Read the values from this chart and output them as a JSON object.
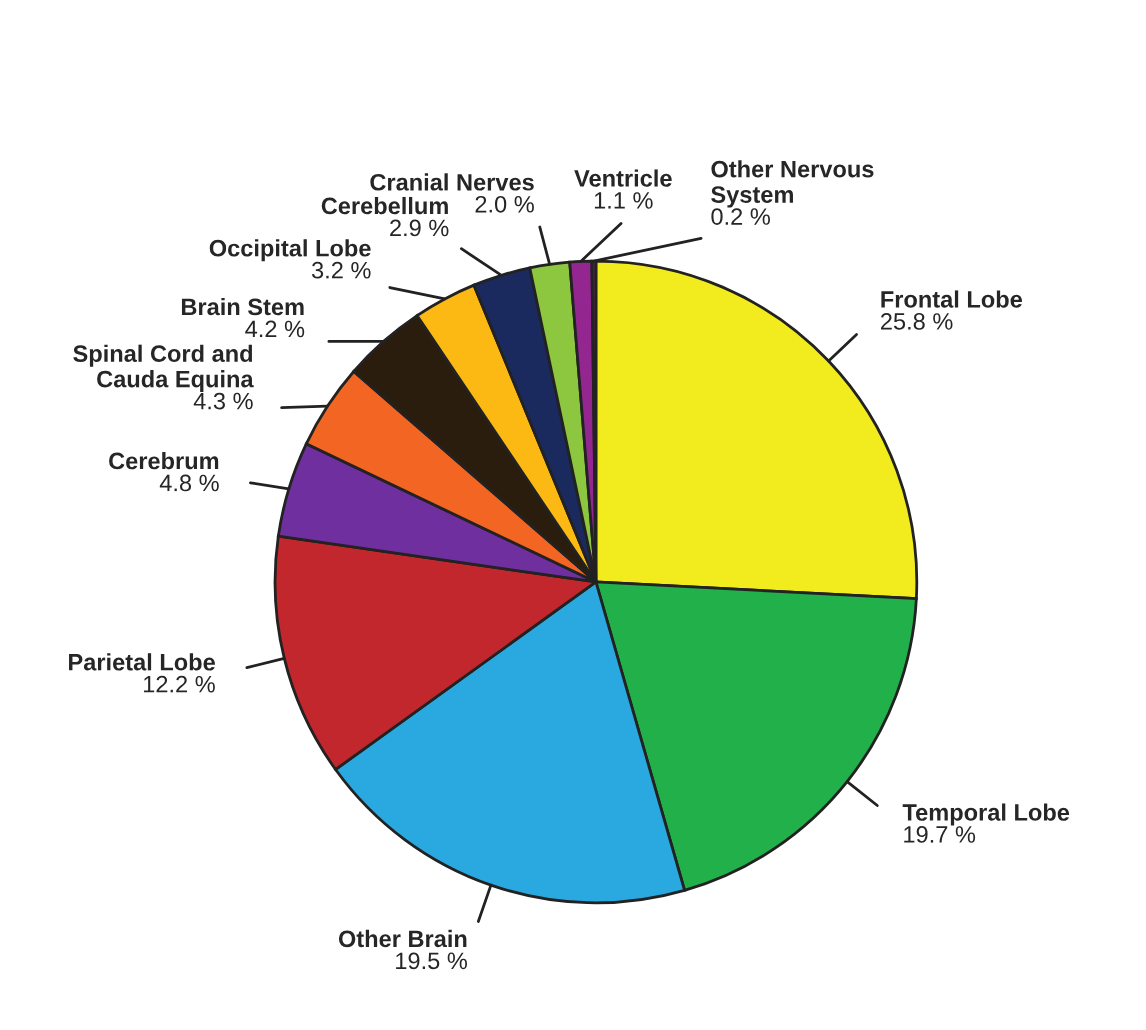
{
  "chart_data": {
    "type": "pie",
    "categories": [
      "Frontal Lobe",
      "Temporal Lobe",
      "Other Brain",
      "Parietal Lobe",
      "Cerebrum",
      "Spinal Cord and Cauda Equina",
      "Brain Stem",
      "Occipital Lobe",
      "Cerebellum",
      "Cranial Nerves",
      "Ventricle",
      "Other Nervous System"
    ],
    "values": [
      25.8,
      19.7,
      19.5,
      12.2,
      4.8,
      4.3,
      4.2,
      3.2,
      2.9,
      2.0,
      1.1,
      0.2
    ],
    "value_labels": [
      "25.8 %",
      "19.7 %",
      "19.5 %",
      "12.2 %",
      "4.8 %",
      "4.3 %",
      "4.2 %",
      "3.2 %",
      "2.9 %",
      "2.0 %",
      "1.1 %",
      "0.2 %"
    ],
    "colors": [
      "#f2ec1e",
      "#22b04b",
      "#2aa9e0",
      "#c1272d",
      "#6f2f9f",
      "#f26522",
      "#2b1d0e",
      "#fdb913",
      "#1b2a5e",
      "#8dc63f",
      "#93278f",
      "#5a1f4f"
    ]
  }
}
